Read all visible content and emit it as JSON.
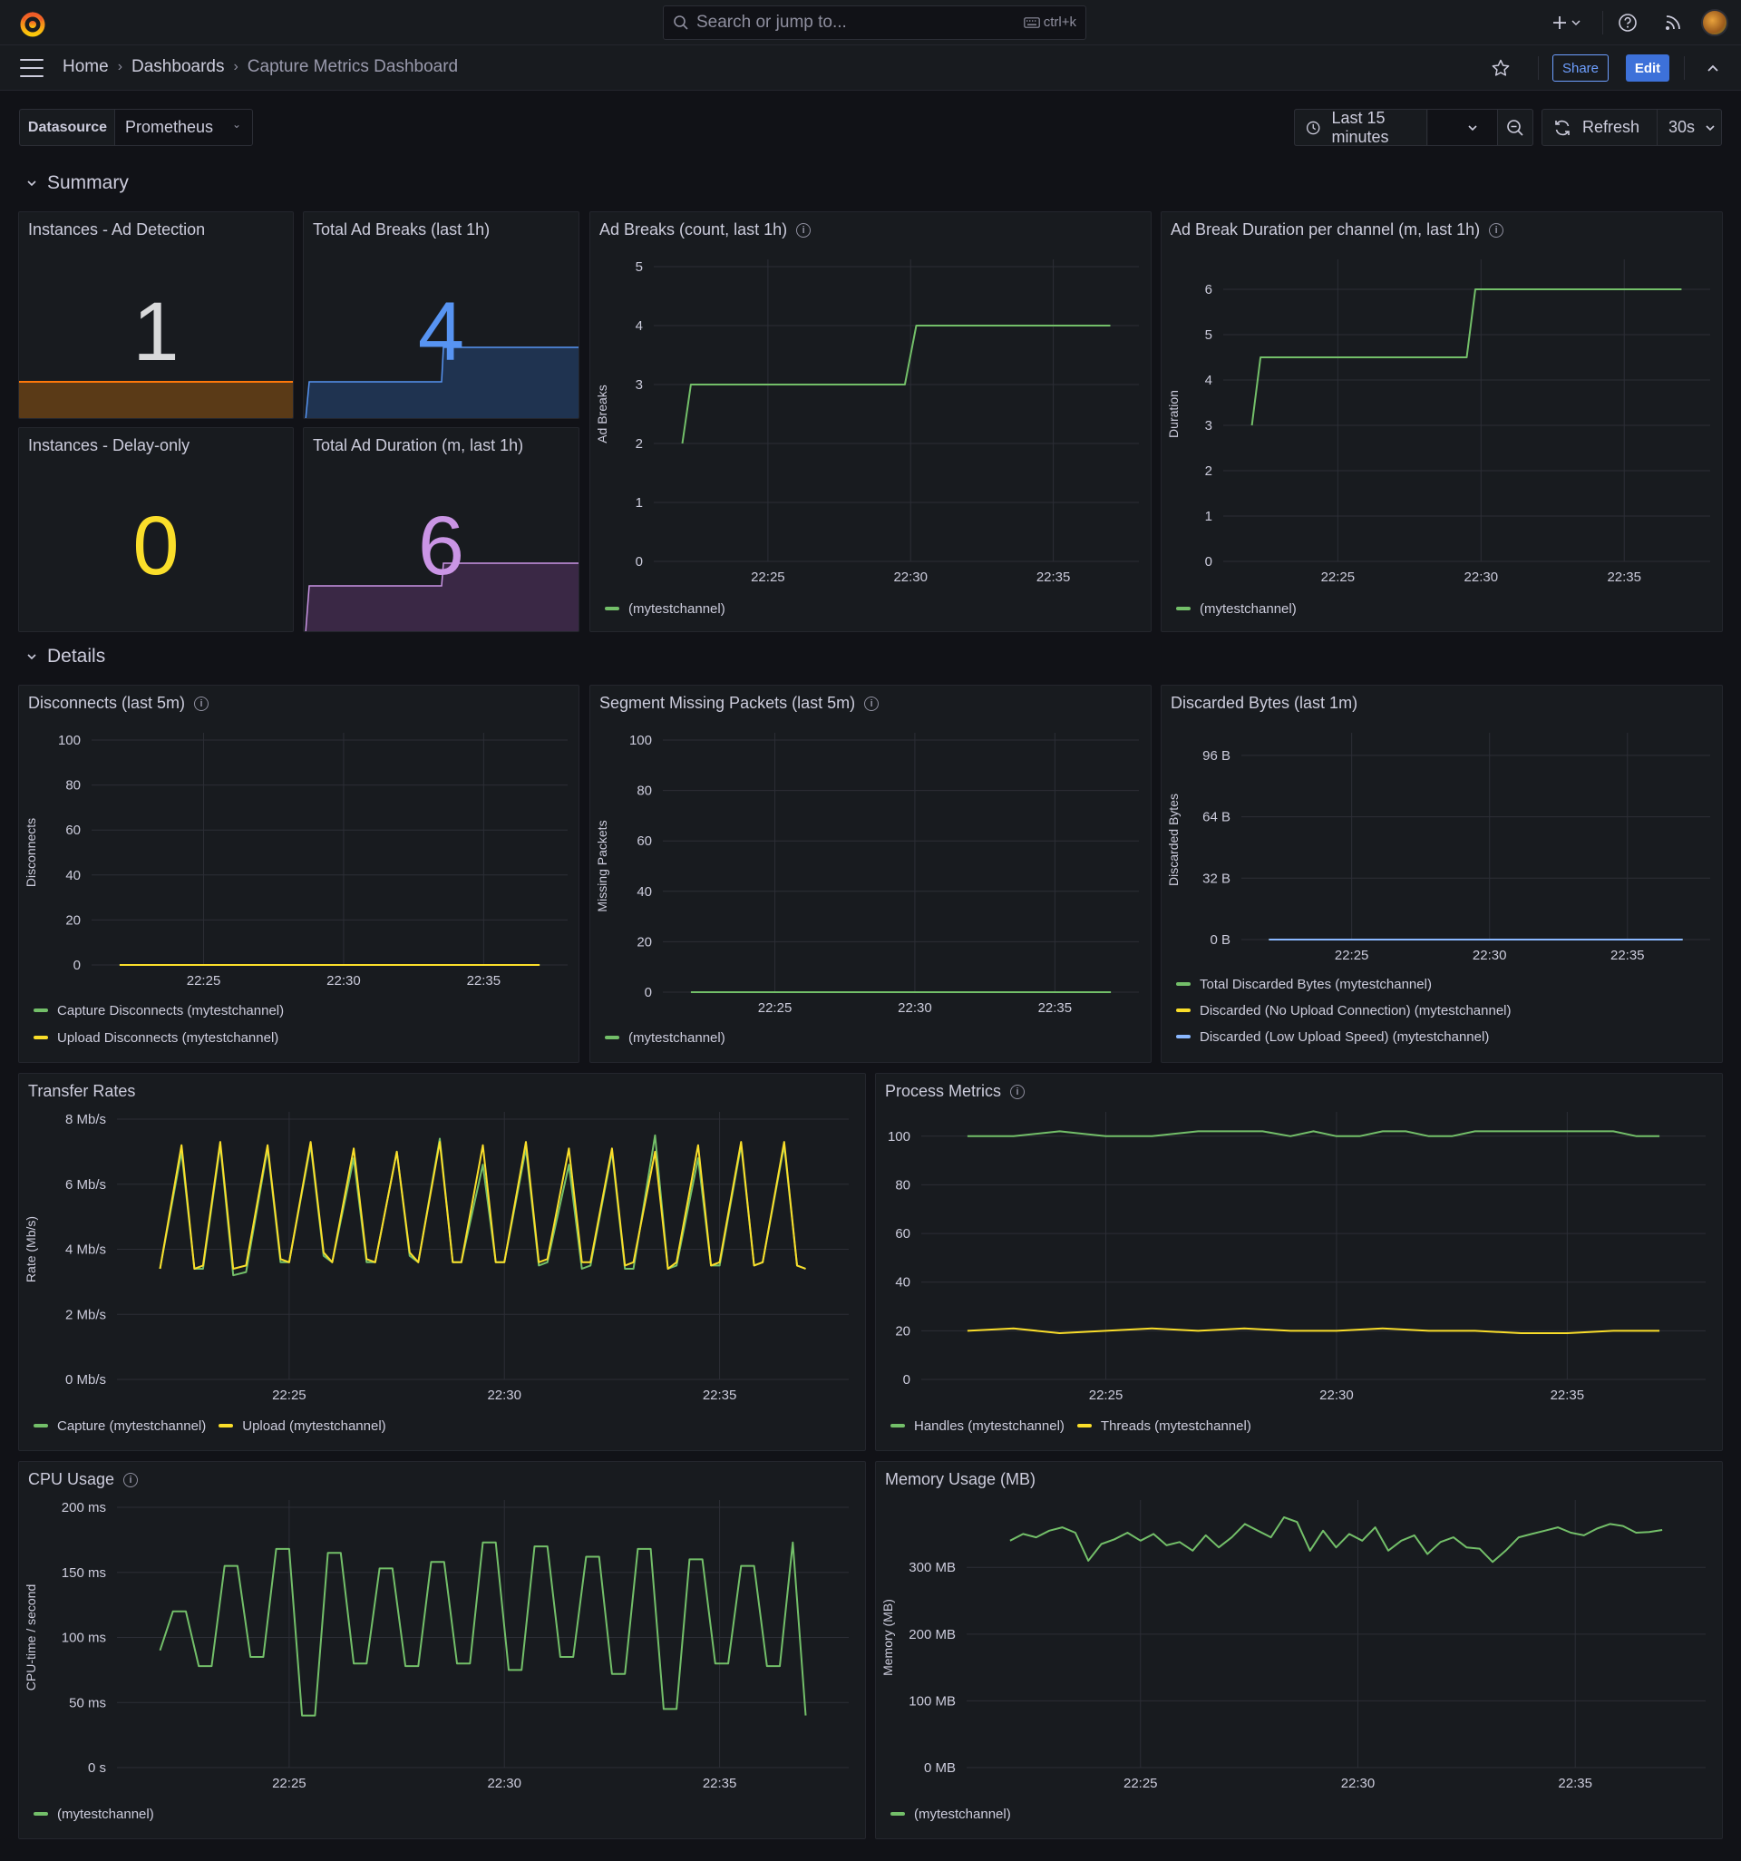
{
  "topbar": {
    "search_placeholder": "Search or jump to...",
    "search_shortcut": "ctrl+k"
  },
  "breadcrumb": {
    "home": "Home",
    "dashboards": "Dashboards",
    "current": "Capture Metrics Dashboard"
  },
  "toolbar": {
    "share": "Share",
    "edit": "Edit"
  },
  "variables": {
    "label": "Datasource",
    "value": "Prometheus"
  },
  "time": {
    "range": "Last 15 minutes",
    "refresh": "Refresh",
    "interval": "30s"
  },
  "rows": {
    "summary": "Summary",
    "details": "Details"
  },
  "colors": {
    "green": "#73bf69",
    "yellow": "#fade2a",
    "blue": "#8ab8ff",
    "orange": "#ff780a",
    "purple": "#ca95e5",
    "statBlue": "#5794f2",
    "grid": "#2c2e36",
    "axis": "#ccccdc"
  },
  "stats": [
    {
      "title": "Instances - Ad Detection",
      "value": "1"
    },
    {
      "title": "Total Ad Breaks (last 1h)",
      "value": "4"
    },
    {
      "title": "Instances - Delay-only",
      "value": "0"
    },
    {
      "title": "Total Ad Duration (m, last 1h)",
      "value": "6"
    }
  ],
  "panels": {
    "adbreaks": {
      "title": "Ad Breaks (count, last 1h)",
      "legend": [
        "(mytestchannel)"
      ]
    },
    "adduration": {
      "title": "Ad Break Duration per channel (m, last 1h)",
      "legend": [
        "(mytestchannel)"
      ]
    },
    "disconnects": {
      "title": "Disconnects (last 5m)",
      "legend": [
        "Capture Disconnects (mytestchannel)",
        "Upload Disconnects (mytestchannel)"
      ]
    },
    "missing": {
      "title": "Segment Missing Packets (last 5m)",
      "legend": [
        "(mytestchannel)"
      ]
    },
    "discarded": {
      "title": "Discarded Bytes (last 1m)",
      "legend": [
        "Total Discarded Bytes (mytestchannel)",
        "Discarded (No Upload Connection) (mytestchannel)",
        "Discarded (Low Upload Speed) (mytestchannel)"
      ]
    },
    "transfer": {
      "title": "Transfer Rates",
      "legend": [
        "Capture (mytestchannel)",
        "Upload (mytestchannel)"
      ]
    },
    "process": {
      "title": "Process Metrics",
      "legend": [
        "Handles (mytestchannel)",
        "Threads (mytestchannel)"
      ]
    },
    "cpu": {
      "title": "CPU Usage",
      "legend": [
        "(mytestchannel)"
      ]
    },
    "memory": {
      "title": "Memory Usage (MB)",
      "legend": [
        "(mytestchannel)"
      ]
    }
  },
  "chart_data": [
    {
      "id": "adbreaks",
      "type": "line",
      "ylabel": "Ad Breaks",
      "xticks": [
        "22:25",
        "22:30",
        "22:35"
      ],
      "yticks": [
        "0",
        "1",
        "2",
        "3",
        "4",
        "5"
      ],
      "ylim": [
        0,
        5
      ],
      "series": [
        {
          "name": "(mytestchannel)",
          "color": "#73bf69",
          "x": [
            22.0,
            22.3,
            29.8,
            30.2,
            37.0
          ],
          "values": [
            2,
            3,
            3,
            4,
            4
          ]
        }
      ]
    },
    {
      "id": "adduration",
      "type": "line",
      "ylabel": "Duration",
      "xticks": [
        "22:25",
        "22:30",
        "22:35"
      ],
      "yticks": [
        "0",
        "1",
        "2",
        "3",
        "4",
        "5",
        "6"
      ],
      "ylim": [
        0,
        6.5
      ],
      "series": [
        {
          "name": "(mytestchannel)",
          "color": "#73bf69",
          "x": [
            22.0,
            22.3,
            29.5,
            29.8,
            37.0
          ],
          "values": [
            3,
            4.5,
            4.5,
            6,
            6
          ]
        }
      ]
    },
    {
      "id": "disconnects",
      "type": "line",
      "ylabel": "Disconnects",
      "xticks": [
        "22:25",
        "22:30",
        "22:35"
      ],
      "yticks": [
        "0",
        "20",
        "40",
        "60",
        "80",
        "100"
      ],
      "ylim": [
        0,
        100
      ],
      "series": [
        {
          "name": "Capture Disconnects (mytestchannel)",
          "color": "#73bf69",
          "x": [
            22.0,
            37.0
          ],
          "values": [
            0,
            0
          ]
        },
        {
          "name": "Upload Disconnects (mytestchannel)",
          "color": "#fade2a",
          "x": [
            22.0,
            37.0
          ],
          "values": [
            0,
            0
          ]
        }
      ]
    },
    {
      "id": "missing",
      "type": "line",
      "ylabel": "Missing Packets",
      "xticks": [
        "22:25",
        "22:30",
        "22:35"
      ],
      "yticks": [
        "0",
        "20",
        "40",
        "60",
        "80",
        "100"
      ],
      "ylim": [
        0,
        100
      ],
      "series": [
        {
          "name": "(mytestchannel)",
          "color": "#73bf69",
          "x": [
            22.0,
            37.0
          ],
          "values": [
            0,
            0
          ]
        }
      ]
    },
    {
      "id": "discarded",
      "type": "line",
      "ylabel": "Discarded Bytes",
      "xticks": [
        "22:25",
        "22:30",
        "22:35"
      ],
      "yticks": [
        "0 B",
        "32 B",
        "64 B",
        "96 B"
      ],
      "ylim": [
        0,
        104
      ],
      "series": [
        {
          "name": "Total Discarded Bytes (mytestchannel)",
          "color": "#73bf69",
          "x": [
            22.0,
            37.0
          ],
          "values": [
            0,
            0
          ]
        },
        {
          "name": "Discarded (No Upload Connection) (mytestchannel)",
          "color": "#fade2a",
          "x": [
            22.0,
            37.0
          ],
          "values": [
            0,
            0
          ]
        },
        {
          "name": "Discarded (Low Upload Speed) (mytestchannel)",
          "color": "#8ab8ff",
          "x": [
            22.0,
            37.0
          ],
          "values": [
            0,
            0
          ]
        }
      ]
    },
    {
      "id": "transfer",
      "type": "line",
      "ylabel": "Rate (Mb/s)",
      "xticks": [
        "22:25",
        "22:30",
        "22:35"
      ],
      "yticks": [
        "0 Mb/s",
        "2 Mb/s",
        "4 Mb/s",
        "6 Mb/s",
        "8 Mb/s"
      ],
      "ylim": [
        0,
        8
      ],
      "series": [
        {
          "name": "Capture (mytestchannel)",
          "color": "#73bf69",
          "x": [
            22.0,
            22.5,
            22.8,
            23.0,
            23.4,
            23.7,
            24.0,
            24.5,
            24.8,
            25.0,
            25.5,
            25.8,
            26.0,
            26.5,
            26.8,
            27.0,
            27.5,
            27.8,
            28.0,
            28.5,
            28.8,
            29.0,
            29.5,
            29.8,
            30.0,
            30.5,
            30.8,
            31.0,
            31.5,
            31.8,
            32.0,
            32.5,
            32.8,
            33.0,
            33.5,
            33.8,
            34.0,
            34.5,
            34.8,
            35.0,
            35.5,
            35.8,
            36.0,
            36.5,
            36.8,
            37.0
          ],
          "values": [
            3.4,
            7.0,
            3.4,
            3.4,
            7.2,
            3.2,
            3.3,
            7.1,
            3.6,
            3.6,
            7.2,
            3.8,
            3.6,
            6.8,
            3.6,
            3.6,
            7.0,
            3.8,
            3.6,
            7.4,
            3.6,
            3.6,
            6.6,
            3.6,
            3.6,
            7.1,
            3.5,
            3.6,
            6.6,
            3.4,
            3.5,
            7.0,
            3.4,
            3.4,
            7.5,
            3.4,
            3.5,
            6.8,
            3.5,
            3.5,
            7.2,
            3.5,
            3.6,
            7.2,
            3.5,
            3.4
          ]
        },
        {
          "name": "Upload (mytestchannel)",
          "color": "#fade2a",
          "x": [
            22.0,
            22.5,
            22.8,
            23.0,
            23.4,
            23.7,
            24.0,
            24.5,
            24.8,
            25.0,
            25.5,
            25.8,
            26.0,
            26.5,
            26.8,
            27.0,
            27.5,
            27.8,
            28.0,
            28.5,
            28.8,
            29.0,
            29.5,
            29.8,
            30.0,
            30.5,
            30.8,
            31.0,
            31.5,
            31.8,
            32.0,
            32.5,
            32.8,
            33.0,
            33.5,
            33.8,
            34.0,
            34.5,
            34.8,
            35.0,
            35.5,
            35.8,
            36.0,
            36.5,
            36.8,
            37.0
          ],
          "values": [
            3.4,
            7.2,
            3.4,
            3.5,
            7.3,
            3.4,
            3.5,
            7.2,
            3.7,
            3.6,
            7.3,
            3.9,
            3.6,
            7.1,
            3.7,
            3.6,
            7.0,
            3.9,
            3.6,
            7.3,
            3.6,
            3.6,
            7.2,
            3.6,
            3.6,
            7.3,
            3.6,
            3.7,
            7.1,
            3.6,
            3.6,
            7.1,
            3.5,
            3.6,
            7.0,
            3.4,
            3.6,
            7.2,
            3.5,
            3.6,
            7.3,
            3.5,
            3.6,
            7.3,
            3.5,
            3.4
          ]
        }
      ]
    },
    {
      "id": "process",
      "type": "line",
      "ylabel": "",
      "xticks": [
        "22:25",
        "22:30",
        "22:35"
      ],
      "yticks": [
        "0",
        "20",
        "40",
        "60",
        "80",
        "100"
      ],
      "ylim": [
        0,
        107
      ],
      "series": [
        {
          "name": "Handles (mytestchannel)",
          "color": "#73bf69",
          "x": [
            22.0,
            23.0,
            24.0,
            24.5,
            25.0,
            25.5,
            26.0,
            27.0,
            28.0,
            28.4,
            29.0,
            29.5,
            30.0,
            30.5,
            31.0,
            31.5,
            32.0,
            32.5,
            33.0,
            33.5,
            34.0,
            35.0,
            35.5,
            36.0,
            36.5,
            37.0
          ],
          "values": [
            100,
            100,
            102,
            101,
            100,
            100,
            100,
            102,
            102,
            102,
            100,
            102,
            100,
            100,
            102,
            102,
            100,
            100,
            102,
            102,
            102,
            102,
            102,
            102,
            100,
            100
          ]
        },
        {
          "name": "Threads (mytestchannel)",
          "color": "#fade2a",
          "x": [
            22.0,
            23.0,
            24.0,
            25.0,
            26.0,
            27.0,
            28.0,
            29.0,
            30.0,
            31.0,
            32.0,
            33.0,
            34.0,
            35.0,
            36.0,
            37.0
          ],
          "values": [
            20,
            21,
            19,
            20,
            21,
            20,
            21,
            20,
            20,
            21,
            20,
            20,
            19,
            19,
            20,
            20
          ]
        }
      ]
    },
    {
      "id": "cpu",
      "type": "line",
      "ylabel": "CPU-time / second",
      "xticks": [
        "22:25",
        "22:30",
        "22:35"
      ],
      "yticks": [
        "0 s",
        "50 ms",
        "100 ms",
        "150 ms",
        "200 ms"
      ],
      "ylim": [
        0,
        200
      ],
      "series": [
        {
          "name": "(mytestchannel)",
          "color": "#73bf69",
          "x": [
            22.0,
            22.3,
            22.6,
            22.9,
            23.2,
            23.5,
            23.8,
            24.1,
            24.4,
            24.7,
            25.0,
            25.3,
            25.6,
            25.9,
            26.2,
            26.5,
            26.8,
            27.1,
            27.4,
            27.7,
            28.0,
            28.3,
            28.6,
            28.9,
            29.2,
            29.5,
            29.8,
            30.1,
            30.4,
            30.7,
            31.0,
            31.3,
            31.6,
            31.9,
            32.2,
            32.5,
            32.8,
            33.1,
            33.4,
            33.7,
            34.0,
            34.3,
            34.6,
            34.9,
            35.2,
            35.5,
            35.8,
            36.1,
            36.4,
            36.7,
            37.0
          ],
          "values": [
            90,
            120,
            120,
            78,
            78,
            155,
            155,
            85,
            85,
            168,
            168,
            40,
            40,
            165,
            165,
            80,
            80,
            153,
            153,
            78,
            78,
            158,
            158,
            80,
            80,
            173,
            173,
            75,
            75,
            170,
            170,
            85,
            85,
            162,
            162,
            72,
            72,
            168,
            168,
            45,
            45,
            160,
            160,
            80,
            80,
            155,
            155,
            78,
            78,
            173,
            40
          ]
        }
      ]
    },
    {
      "id": "memory",
      "type": "line",
      "ylabel": "Memory (MB)",
      "xticks": [
        "22:25",
        "22:30",
        "22:35"
      ],
      "yticks": [
        "0 MB",
        "100 MB",
        "200 MB",
        "300 MB"
      ],
      "ylim": [
        0,
        390
      ],
      "series": [
        {
          "name": "(mytestchannel)",
          "color": "#73bf69",
          "x": [
            22.0,
            22.3,
            22.6,
            22.9,
            23.2,
            23.5,
            23.8,
            24.1,
            24.4,
            24.7,
            25.0,
            25.3,
            25.6,
            25.9,
            26.2,
            26.5,
            26.8,
            27.1,
            27.4,
            27.7,
            28.0,
            28.3,
            28.6,
            28.9,
            29.2,
            29.5,
            29.8,
            30.1,
            30.4,
            30.7,
            31.0,
            31.3,
            31.6,
            31.9,
            32.2,
            32.5,
            32.8,
            33.1,
            33.4,
            33.7,
            34.0,
            34.3,
            34.6,
            34.9,
            35.2,
            35.5,
            35.8,
            36.1,
            36.4,
            36.7,
            37.0
          ],
          "values": [
            340,
            350,
            345,
            355,
            360,
            352,
            310,
            335,
            342,
            352,
            340,
            350,
            333,
            338,
            325,
            348,
            330,
            345,
            365,
            355,
            345,
            375,
            368,
            325,
            355,
            330,
            350,
            340,
            360,
            325,
            340,
            348,
            320,
            338,
            345,
            330,
            328,
            308,
            325,
            345,
            350,
            355,
            360,
            352,
            348,
            358,
            365,
            362,
            352,
            353,
            356
          ]
        }
      ]
    }
  ]
}
